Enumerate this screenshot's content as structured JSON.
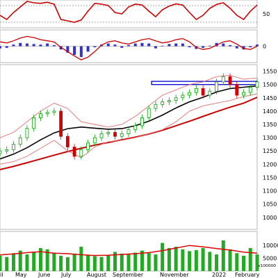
{
  "chart_data": [
    {
      "panel": "oscillator",
      "type": "line",
      "y_ticks": [
        50
      ],
      "ylim": [
        0,
        100
      ],
      "reference_levels": [
        80,
        20
      ],
      "series": [
        {
          "color": "#cc0000",
          "x": [
            0,
            5,
            10,
            15,
            20,
            25,
            30,
            35,
            40,
            45,
            50,
            55,
            60,
            65,
            70,
            75,
            80,
            85,
            90,
            95,
            100,
            105,
            110,
            115,
            120,
            125,
            130,
            135,
            140,
            145,
            150,
            155,
            160,
            165,
            170,
            175,
            180,
            185,
            190
          ],
          "values": [
            45,
            30,
            55,
            75,
            95,
            90,
            88,
            92,
            85,
            30,
            25,
            20,
            28,
            60,
            88,
            85,
            80,
            55,
            50,
            75,
            85,
            82,
            60,
            40,
            65,
            78,
            86,
            82,
            55,
            30,
            45,
            70,
            84,
            90,
            70,
            45,
            30,
            60,
            82
          ]
        }
      ]
    },
    {
      "panel": "macd",
      "type": "bar+line",
      "y_ticks": [
        0
      ],
      "ylim": [
        -30,
        30
      ],
      "histogram_color": "#3333cc",
      "signal_color": "#cc0000",
      "histogram": {
        "x": [
          0,
          5,
          10,
          15,
          20,
          25,
          30,
          35,
          40,
          45,
          50,
          55,
          60,
          65,
          70,
          75,
          80,
          85,
          90,
          95,
          100,
          105,
          110,
          115,
          120,
          125,
          130,
          135,
          140,
          145,
          150,
          155,
          160,
          165,
          170,
          175,
          180,
          185,
          190
        ],
        "values": [
          -4,
          -3,
          3,
          6,
          5,
          4,
          3,
          5,
          2,
          -6,
          -12,
          -16,
          -20,
          -10,
          -2,
          3,
          5,
          3,
          -3,
          2,
          5,
          6,
          5,
          -4,
          1,
          4,
          5,
          5,
          -2,
          -5,
          -3,
          1,
          6,
          5,
          2,
          -4,
          -6,
          -2,
          3
        ]
      },
      "signal": {
        "x": [
          0,
          5,
          10,
          15,
          20,
          25,
          30,
          35,
          40,
          45,
          50,
          55,
          60,
          65,
          70,
          75,
          80,
          85,
          90,
          95,
          100,
          105,
          110,
          115,
          120,
          125,
          130,
          135,
          140,
          145,
          150,
          155,
          160,
          165,
          170,
          175,
          180,
          185,
          190
        ],
        "values": [
          8,
          6,
          10,
          15,
          18,
          16,
          12,
          10,
          8,
          -2,
          -10,
          -18,
          -25,
          -20,
          -10,
          2,
          8,
          10,
          6,
          4,
          8,
          12,
          14,
          10,
          6,
          8,
          12,
          14,
          8,
          -2,
          -6,
          -4,
          2,
          8,
          10,
          4,
          -4,
          -6,
          0
        ]
      }
    },
    {
      "panel": "price",
      "type": "candlestick",
      "y_ticks": [
        1000,
        1050,
        1100,
        1150,
        1200,
        1250,
        1300,
        1350,
        1400,
        1450,
        1500,
        1550
      ],
      "ylim": [
        955,
        1575
      ],
      "bull_color": "#00a000",
      "bear_color": "#d40000",
      "candles_close": {
        "x": [
          0,
          5,
          10,
          15,
          20,
          25,
          30,
          35,
          40,
          45,
          50,
          55,
          60,
          65,
          70,
          75,
          80,
          85,
          90,
          95,
          100,
          105,
          110,
          115,
          120,
          125,
          130,
          135,
          140,
          145,
          150,
          155,
          160,
          165,
          170,
          175,
          180,
          185,
          190
        ],
        "values": [
          1250,
          1255,
          1275,
          1300,
          1335,
          1375,
          1390,
          1395,
          1400,
          1305,
          1265,
          1230,
          1255,
          1280,
          1300,
          1315,
          1320,
          1305,
          1315,
          1330,
          1345,
          1375,
          1410,
          1425,
          1435,
          1440,
          1450,
          1460,
          1470,
          1485,
          1460,
          1475,
          1510,
          1530,
          1500,
          1460,
          1470,
          1490,
          1510
        ]
      },
      "series": [
        {
          "color": "#000000",
          "x": [
            0,
            10,
            20,
            30,
            40,
            50,
            60,
            70,
            80,
            90,
            100,
            110,
            120,
            130,
            140,
            150,
            160,
            170,
            180,
            190
          ],
          "values": [
            1220,
            1238,
            1262,
            1292,
            1318,
            1334,
            1340,
            1336,
            1332,
            1334,
            1345,
            1362,
            1385,
            1412,
            1435,
            1452,
            1472,
            1485,
            1490,
            1495
          ]
        },
        {
          "color": "#cc0000",
          "x": [
            0,
            10,
            20,
            30,
            40,
            50,
            60,
            70,
            80,
            90,
            100,
            110,
            120,
            130,
            140,
            150,
            160,
            170,
            180,
            190
          ],
          "values": [
            1180,
            1192,
            1206,
            1220,
            1234,
            1248,
            1260,
            1272,
            1282,
            1292,
            1302,
            1314,
            1328,
            1345,
            1362,
            1380,
            1398,
            1415,
            1430,
            1452
          ]
        },
        {
          "color": "#e07070",
          "x": [
            0,
            10,
            20,
            30,
            40,
            50,
            60,
            70,
            80,
            90,
            100,
            110,
            120,
            130,
            140,
            150,
            160,
            170,
            180,
            190
          ],
          "values": [
            1300,
            1320,
            1360,
            1400,
            1430,
            1410,
            1360,
            1350,
            1340,
            1350,
            1380,
            1420,
            1460,
            1480,
            1500,
            1510,
            1530,
            1535,
            1520,
            1525
          ]
        },
        {
          "color": "#e07070",
          "x": [
            0,
            10,
            20,
            30,
            40,
            50,
            60,
            70,
            80,
            90,
            100,
            110,
            120,
            130,
            140,
            150,
            160,
            170,
            180,
            190
          ],
          "values": [
            1200,
            1210,
            1230,
            1260,
            1290,
            1250,
            1225,
            1265,
            1285,
            1290,
            1300,
            1315,
            1330,
            1360,
            1400,
            1420,
            1430,
            1440,
            1455,
            1465
          ]
        }
      ],
      "resistance_zone": {
        "from_x": 112,
        "to_x": 190,
        "low": 1500,
        "high": 1512,
        "color": "#0000cc"
      }
    },
    {
      "panel": "volume",
      "type": "bar",
      "y_ticks": [
        5000,
        10000
      ],
      "unit_label": "x100000",
      "ylim": [
        0,
        15500
      ],
      "bar_color": "#22aa22",
      "values": [
        6000,
        5500,
        7000,
        8000,
        6500,
        7500,
        9000,
        8500,
        7200,
        6000,
        5400,
        6800,
        9500,
        6200,
        5800,
        5500,
        6000,
        7500,
        6800,
        6500,
        7200,
        8000,
        7000,
        6500,
        11000,
        9000,
        9500,
        8500,
        7800,
        8200,
        9000,
        7500,
        6500,
        12000,
        8500,
        7000,
        6000,
        9000,
        6500
      ],
      "ma_color": "#dd0000",
      "ma": {
        "x": [
          0,
          10,
          20,
          30,
          40,
          50,
          60,
          70,
          80,
          90,
          100,
          110,
          120,
          130,
          140,
          150,
          160,
          170,
          180,
          190
        ],
        "values": [
          6300,
          6700,
          7200,
          7600,
          7000,
          6800,
          6400,
          6100,
          6200,
          6500,
          6800,
          7200,
          8000,
          9000,
          10000,
          9500,
          8800,
          8200,
          7400,
          7000
        ]
      }
    }
  ],
  "x_axis_labels": [
    "il",
    "May",
    "June",
    "July",
    "August",
    "September",
    "November",
    "2022",
    "February"
  ]
}
